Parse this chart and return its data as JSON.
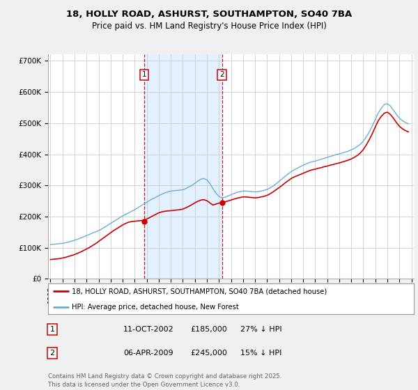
{
  "title_line1": "18, HOLLY ROAD, ASHURST, SOUTHAMPTON, SO40 7BA",
  "title_line2": "Price paid vs. HM Land Registry's House Price Index (HPI)",
  "ylim": [
    0,
    720000
  ],
  "yticks": [
    0,
    100000,
    200000,
    300000,
    400000,
    500000,
    600000,
    700000
  ],
  "ytick_labels": [
    "£0",
    "£100K",
    "£200K",
    "£300K",
    "£400K",
    "£500K",
    "£600K",
    "£700K"
  ],
  "hpi_color": "#6baed6",
  "price_color": "#cc0000",
  "vline_color": "#cc0000",
  "shaded_color": "#ddeeff",
  "legend_line1": "18, HOLLY ROAD, ASHURST, SOUTHAMPTON, SO40 7BA (detached house)",
  "legend_line2": "HPI: Average price, detached house, New Forest",
  "footer": "Contains HM Land Registry data © Crown copyright and database right 2025.\nThis data is licensed under the Open Government Licence v3.0.",
  "background_color": "#f0f0f0",
  "plot_bg_color": "#ffffff",
  "grid_color": "#cccccc",
  "marker1_x": 2002.78,
  "marker1_y": 185000,
  "marker2_x": 2009.25,
  "marker2_y": 245000,
  "x_year_start": 1995,
  "x_year_end": 2025,
  "xtick_years": [
    1995,
    1996,
    1997,
    1998,
    1999,
    2000,
    2001,
    2002,
    2003,
    2004,
    2005,
    2006,
    2007,
    2008,
    2009,
    2010,
    2011,
    2012,
    2013,
    2014,
    2015,
    2016,
    2017,
    2018,
    2019,
    2020,
    2021,
    2022,
    2023,
    2024,
    2025
  ],
  "hpi_years": [
    1995,
    1995.25,
    1995.5,
    1995.75,
    1996,
    1996.25,
    1996.5,
    1996.75,
    1997,
    1997.25,
    1997.5,
    1997.75,
    1998,
    1998.25,
    1998.5,
    1998.75,
    1999,
    1999.25,
    1999.5,
    1999.75,
    2000,
    2000.25,
    2000.5,
    2000.75,
    2001,
    2001.25,
    2001.5,
    2001.75,
    2002,
    2002.25,
    2002.5,
    2002.75,
    2003,
    2003.25,
    2003.5,
    2003.75,
    2004,
    2004.25,
    2004.5,
    2004.75,
    2005,
    2005.25,
    2005.5,
    2005.75,
    2006,
    2006.25,
    2006.5,
    2006.75,
    2007,
    2007.25,
    2007.5,
    2007.75,
    2008,
    2008.25,
    2008.5,
    2008.75,
    2009,
    2009.25,
    2009.5,
    2009.75,
    2010,
    2010.25,
    2010.5,
    2010.75,
    2011,
    2011.25,
    2011.5,
    2011.75,
    2012,
    2012.25,
    2012.5,
    2012.75,
    2013,
    2013.25,
    2013.5,
    2013.75,
    2014,
    2014.25,
    2014.5,
    2014.75,
    2015,
    2015.25,
    2015.5,
    2015.75,
    2016,
    2016.25,
    2016.5,
    2016.75,
    2017,
    2017.25,
    2017.5,
    2017.75,
    2018,
    2018.25,
    2018.5,
    2018.75,
    2019,
    2019.25,
    2019.5,
    2019.75,
    2020,
    2020.25,
    2020.5,
    2020.75,
    2021,
    2021.25,
    2021.5,
    2021.75,
    2022,
    2022.25,
    2022.5,
    2022.75,
    2023,
    2023.25,
    2023.5,
    2023.75,
    2024,
    2024.25,
    2024.5,
    2024.75
  ],
  "hpi_vals": [
    110000,
    111000,
    112000,
    113000,
    114000,
    116000,
    118000,
    121000,
    124000,
    127000,
    131000,
    135000,
    139000,
    143000,
    147000,
    151000,
    155000,
    160000,
    166000,
    172000,
    178000,
    184000,
    190000,
    196000,
    202000,
    207000,
    212000,
    217000,
    222000,
    228000,
    234000,
    240000,
    246000,
    252000,
    257000,
    262000,
    267000,
    272000,
    276000,
    279000,
    282000,
    283000,
    284000,
    285000,
    286000,
    290000,
    295000,
    300000,
    307000,
    314000,
    320000,
    322000,
    318000,
    306000,
    290000,
    275000,
    265000,
    260000,
    262000,
    266000,
    270000,
    274000,
    278000,
    280000,
    282000,
    282000,
    281000,
    280000,
    279000,
    280000,
    282000,
    284000,
    287000,
    292000,
    298000,
    305000,
    313000,
    321000,
    329000,
    337000,
    344000,
    350000,
    355000,
    360000,
    365000,
    369000,
    373000,
    376000,
    378000,
    381000,
    384000,
    387000,
    390000,
    393000,
    396000,
    399000,
    401000,
    404000,
    407000,
    410000,
    414000,
    419000,
    425000,
    432000,
    442000,
    456000,
    472000,
    491000,
    512000,
    533000,
    548000,
    560000,
    562000,
    555000,
    542000,
    528000,
    516000,
    508000,
    502000,
    498000
  ],
  "price_years": [
    1995,
    1995.25,
    1995.5,
    1995.75,
    1996,
    1996.25,
    1996.5,
    1996.75,
    1997,
    1997.25,
    1997.5,
    1997.75,
    1998,
    1998.25,
    1998.5,
    1998.75,
    1999,
    1999.25,
    1999.5,
    1999.75,
    2000,
    2000.25,
    2000.5,
    2000.75,
    2001,
    2001.25,
    2001.5,
    2001.75,
    2002,
    2002.25,
    2002.5,
    2002.75,
    2003,
    2003.25,
    2003.5,
    2003.75,
    2004,
    2004.25,
    2004.5,
    2004.75,
    2005,
    2005.25,
    2005.5,
    2005.75,
    2006,
    2006.25,
    2006.5,
    2006.75,
    2007,
    2007.25,
    2007.5,
    2007.75,
    2008,
    2008.25,
    2008.5,
    2008.75,
    2009,
    2009.25,
    2009.5,
    2009.75,
    2010,
    2010.25,
    2010.5,
    2010.75,
    2011,
    2011.25,
    2011.5,
    2011.75,
    2012,
    2012.25,
    2012.5,
    2012.75,
    2013,
    2013.25,
    2013.5,
    2013.75,
    2014,
    2014.25,
    2014.5,
    2014.75,
    2015,
    2015.25,
    2015.5,
    2015.75,
    2016,
    2016.25,
    2016.5,
    2016.75,
    2017,
    2017.25,
    2017.5,
    2017.75,
    2018,
    2018.25,
    2018.5,
    2018.75,
    2019,
    2019.25,
    2019.5,
    2019.75,
    2020,
    2020.25,
    2020.5,
    2020.75,
    2021,
    2021.25,
    2021.5,
    2021.75,
    2022,
    2022.25,
    2022.5,
    2022.75,
    2023,
    2023.25,
    2023.5,
    2023.75,
    2024,
    2024.25,
    2024.5,
    2024.75
  ],
  "price_vals": [
    62000,
    63000,
    64000,
    65000,
    67000,
    69000,
    72000,
    75000,
    78000,
    82000,
    86000,
    91000,
    96000,
    101000,
    107000,
    113000,
    120000,
    127000,
    134000,
    141000,
    148000,
    155000,
    161000,
    167000,
    173000,
    178000,
    182000,
    184000,
    185000,
    186000,
    187000,
    188000,
    192000,
    197000,
    202000,
    207000,
    212000,
    215000,
    217000,
    218000,
    219000,
    220000,
    221000,
    222000,
    224000,
    228000,
    233000,
    238000,
    244000,
    249000,
    253000,
    254000,
    251000,
    244000,
    237000,
    240000,
    243000,
    245000,
    247000,
    250000,
    253000,
    256000,
    259000,
    261000,
    263000,
    263000,
    262000,
    261000,
    260000,
    261000,
    263000,
    265000,
    268000,
    273000,
    279000,
    286000,
    293000,
    300000,
    308000,
    315000,
    322000,
    327000,
    331000,
    335000,
    339000,
    343000,
    347000,
    350000,
    352000,
    355000,
    357000,
    360000,
    362000,
    365000,
    367000,
    370000,
    372000,
    375000,
    378000,
    381000,
    385000,
    390000,
    396000,
    404000,
    415000,
    430000,
    447000,
    466000,
    488000,
    508000,
    522000,
    532000,
    535000,
    528000,
    516000,
    502000,
    490000,
    482000,
    476000,
    472000
  ]
}
